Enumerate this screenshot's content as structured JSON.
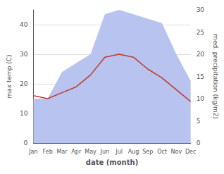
{
  "chart_data": {
    "type": "line",
    "xlabel": "date (month)",
    "ylabel": "max temp (C)",
    "y2label": "med. precipitation (kg/m2)",
    "categories": [
      "Jan",
      "Feb",
      "Mar",
      "Apr",
      "May",
      "Jun",
      "Jul",
      "Aug",
      "Sep",
      "Oct",
      "Nov",
      "Dec"
    ],
    "series": [
      {
        "type": "area",
        "color": "#b8c4ef",
        "axis": "y2",
        "values": [
          10,
          10,
          16,
          18,
          20,
          29,
          30,
          29,
          28,
          27,
          20,
          14
        ]
      },
      {
        "type": "line",
        "color": "#c0392b",
        "values": [
          16,
          15,
          17,
          19,
          23,
          29,
          30,
          29,
          25,
          22,
          18,
          14
        ]
      }
    ],
    "ylim": [
      0,
      45
    ],
    "yticks": [
      0,
      10,
      20,
      30,
      40
    ],
    "y2lim": [
      0,
      30
    ],
    "y2ticks": [
      0,
      5,
      10,
      15,
      20,
      25,
      30
    ],
    "grid": true
  }
}
